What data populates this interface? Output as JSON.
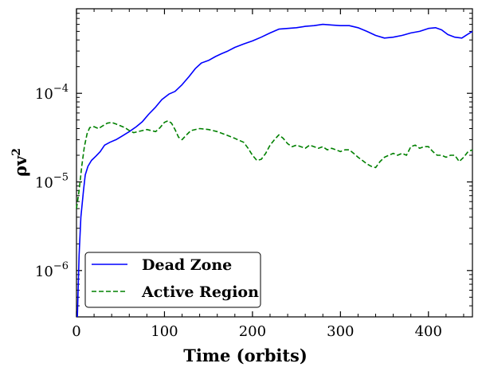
{
  "chart_data": {
    "type": "line",
    "title": "",
    "xlabel": "Time (orbits)",
    "ylabel_base": "ρv",
    "ylabel_sup": "2",
    "xlim": [
      0,
      450
    ],
    "ylim": [
      3e-07,
      0.0009
    ],
    "yscale": "log",
    "x_ticks": [
      0,
      100,
      200,
      300,
      400
    ],
    "x_tick_labels": [
      "0",
      "100",
      "200",
      "300",
      "400"
    ],
    "y_ticks": [
      {
        "value": 1e-06,
        "base": "10",
        "exp": "−6"
      },
      {
        "value": 1e-05,
        "base": "10",
        "exp": "−5"
      },
      {
        "value": 0.0001,
        "base": "10",
        "exp": "−4"
      }
    ],
    "grid": false,
    "legend_position": "lower-left",
    "series": [
      {
        "name": "Dead Zone",
        "color": "#0000ff",
        "style": "solid",
        "points": [
          [
            1,
            3e-07
          ],
          [
            3,
            1.5e-06
          ],
          [
            5,
            4e-06
          ],
          [
            8,
            8e-06
          ],
          [
            10,
            1.2e-05
          ],
          [
            13,
            1.5e-05
          ],
          [
            17,
            1.75e-05
          ],
          [
            22,
            1.95e-05
          ],
          [
            27,
            2.2e-05
          ],
          [
            32,
            2.6e-05
          ],
          [
            38,
            2.8e-05
          ],
          [
            45,
            3e-05
          ],
          [
            52,
            3.3e-05
          ],
          [
            60,
            3.7e-05
          ],
          [
            68,
            4.2e-05
          ],
          [
            75,
            4.8e-05
          ],
          [
            82,
            5.8e-05
          ],
          [
            90,
            7e-05
          ],
          [
            97,
            8.5e-05
          ],
          [
            105,
            9.8e-05
          ],
          [
            112,
            0.000105
          ],
          [
            120,
            0.000125
          ],
          [
            128,
            0.000155
          ],
          [
            135,
            0.00019
          ],
          [
            142,
            0.00022
          ],
          [
            150,
            0.000235
          ],
          [
            158,
            0.00026
          ],
          [
            165,
            0.00028
          ],
          [
            172,
            0.0003
          ],
          [
            180,
            0.00033
          ],
          [
            190,
            0.00036
          ],
          [
            200,
            0.00039
          ],
          [
            210,
            0.00043
          ],
          [
            220,
            0.00048
          ],
          [
            230,
            0.00053
          ],
          [
            240,
            0.00054
          ],
          [
            250,
            0.00055
          ],
          [
            260,
            0.00057
          ],
          [
            270,
            0.00058
          ],
          [
            280,
            0.0006
          ],
          [
            290,
            0.00059
          ],
          [
            300,
            0.00058
          ],
          [
            310,
            0.00058
          ],
          [
            320,
            0.00055
          ],
          [
            330,
            0.0005
          ],
          [
            340,
            0.00045
          ],
          [
            350,
            0.00042
          ],
          [
            360,
            0.00043
          ],
          [
            370,
            0.00045
          ],
          [
            380,
            0.00048
          ],
          [
            390,
            0.0005
          ],
          [
            400,
            0.00054
          ],
          [
            408,
            0.00055
          ],
          [
            415,
            0.00052
          ],
          [
            422,
            0.00046
          ],
          [
            430,
            0.00043
          ],
          [
            438,
            0.00042
          ],
          [
            444,
            0.00046
          ],
          [
            450,
            0.0005
          ]
        ]
      },
      {
        "name": "Active Region",
        "color": "#008000",
        "style": "dashed",
        "points": [
          [
            0,
            5e-06
          ],
          [
            3,
            8e-06
          ],
          [
            6,
            1.5e-05
          ],
          [
            9,
            2.5e-05
          ],
          [
            12,
            3.5e-05
          ],
          [
            15,
            4.1e-05
          ],
          [
            20,
            4.2e-05
          ],
          [
            25,
            4e-05
          ],
          [
            30,
            4.3e-05
          ],
          [
            35,
            4.6e-05
          ],
          [
            40,
            4.7e-05
          ],
          [
            45,
            4.5e-05
          ],
          [
            50,
            4.3e-05
          ],
          [
            55,
            4.1e-05
          ],
          [
            60,
            3.8e-05
          ],
          [
            65,
            3.6e-05
          ],
          [
            70,
            3.7e-05
          ],
          [
            75,
            3.8e-05
          ],
          [
            80,
            3.9e-05
          ],
          [
            85,
            3.8e-05
          ],
          [
            90,
            3.7e-05
          ],
          [
            95,
            4.1e-05
          ],
          [
            100,
            4.7e-05
          ],
          [
            104,
            4.9e-05
          ],
          [
            108,
            4.6e-05
          ],
          [
            112,
            3.9e-05
          ],
          [
            116,
            3.2e-05
          ],
          [
            120,
            3e-05
          ],
          [
            125,
            3.4e-05
          ],
          [
            130,
            3.8e-05
          ],
          [
            140,
            4e-05
          ],
          [
            150,
            3.9e-05
          ],
          [
            160,
            3.7e-05
          ],
          [
            170,
            3.4e-05
          ],
          [
            180,
            3.1e-05
          ],
          [
            190,
            2.8e-05
          ],
          [
            195,
            2.4e-05
          ],
          [
            200,
            2e-05
          ],
          [
            205,
            1.75e-05
          ],
          [
            210,
            1.8e-05
          ],
          [
            215,
            2.1e-05
          ],
          [
            220,
            2.6e-05
          ],
          [
            225,
            3e-05
          ],
          [
            230,
            3.4e-05
          ],
          [
            235,
            3.1e-05
          ],
          [
            240,
            2.7e-05
          ],
          [
            245,
            2.5e-05
          ],
          [
            250,
            2.6e-05
          ],
          [
            255,
            2.5e-05
          ],
          [
            260,
            2.4e-05
          ],
          [
            265,
            2.6e-05
          ],
          [
            270,
            2.5e-05
          ],
          [
            275,
            2.4e-05
          ],
          [
            280,
            2.5e-05
          ],
          [
            285,
            2.3e-05
          ],
          [
            290,
            2.4e-05
          ],
          [
            295,
            2.3e-05
          ],
          [
            300,
            2.2e-05
          ],
          [
            305,
            2.3e-05
          ],
          [
            310,
            2.3e-05
          ],
          [
            315,
            2.1e-05
          ],
          [
            320,
            1.9e-05
          ],
          [
            325,
            1.75e-05
          ],
          [
            330,
            1.6e-05
          ],
          [
            335,
            1.5e-05
          ],
          [
            340,
            1.45e-05
          ],
          [
            345,
            1.7e-05
          ],
          [
            350,
            1.9e-05
          ],
          [
            355,
            2e-05
          ],
          [
            360,
            2.1e-05
          ],
          [
            365,
            2e-05
          ],
          [
            370,
            2.1e-05
          ],
          [
            375,
            2e-05
          ],
          [
            380,
            2.5e-05
          ],
          [
            385,
            2.6e-05
          ],
          [
            390,
            2.4e-05
          ],
          [
            395,
            2.5e-05
          ],
          [
            400,
            2.5e-05
          ],
          [
            405,
            2.2e-05
          ],
          [
            410,
            2e-05
          ],
          [
            415,
            2e-05
          ],
          [
            420,
            1.9e-05
          ],
          [
            425,
            2e-05
          ],
          [
            430,
            2e-05
          ],
          [
            435,
            1.7e-05
          ],
          [
            440,
            1.9e-05
          ],
          [
            445,
            2.2e-05
          ],
          [
            450,
            2.3e-05
          ]
        ]
      }
    ]
  }
}
